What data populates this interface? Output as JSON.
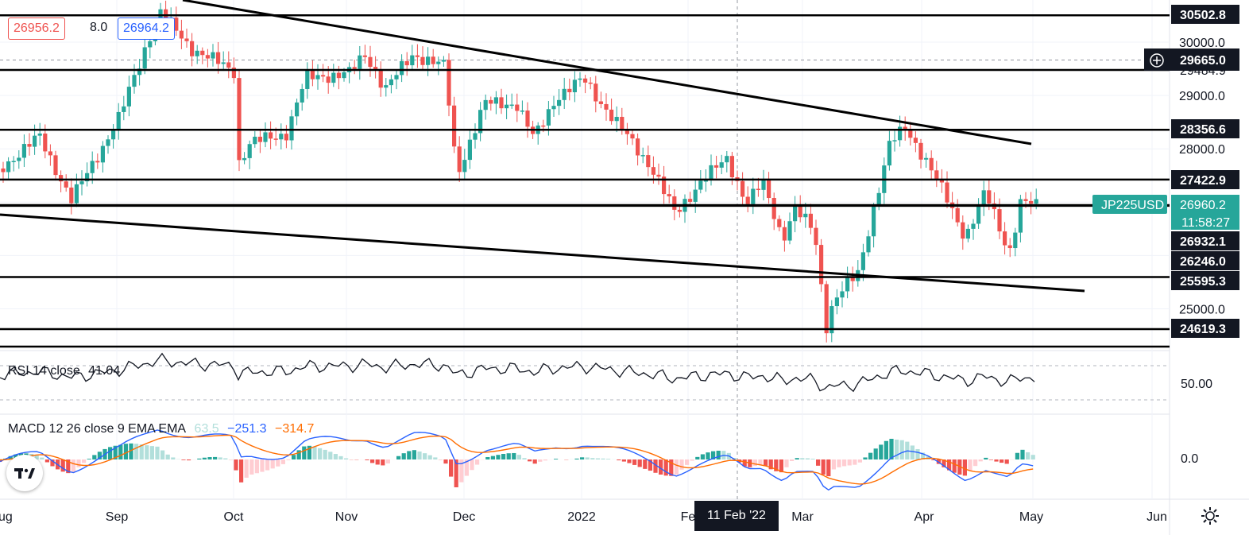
{
  "header": {
    "bid_price": "26956.2",
    "spread": "8.0",
    "ask_price": "26964.2"
  },
  "price_axis": {
    "ticks": [
      "30000.0",
      "29000.0",
      "28000.0",
      "25000.0"
    ],
    "levels": [
      {
        "label": "30502.8",
        "value": 30502.8
      },
      {
        "label": "28356.6",
        "value": 28356.6
      },
      {
        "label": "27422.9",
        "value": 27422.9
      },
      {
        "label": "26932.1",
        "value": 26932.1
      },
      {
        "label": "26246.0",
        "value": 26246.0
      },
      {
        "label": "25595.3",
        "value": 25595.3
      },
      {
        "label": "24619.3",
        "value": 24619.3
      }
    ],
    "crosshair_price": "29665.0",
    "partial_label": "29484.9",
    "symbol_label": "JP225USD",
    "last_price": "26960.2",
    "countdown": "11:58:27"
  },
  "time_axis": {
    "labels": [
      "ug",
      "Sep",
      "Oct",
      "Nov",
      "Dec",
      "2022",
      "Fe",
      "Mar",
      "Apr",
      "May",
      "Jun"
    ],
    "crosshair_date": "11 Feb '22"
  },
  "rsi": {
    "label": "RSI 14 close",
    "value": "41.04",
    "axis_tick": "50.00"
  },
  "macd": {
    "label": "MACD 12 26 close 9 EMA EMA",
    "hist_value": "63.5",
    "macd_value": "−251.3",
    "signal_value": "−314.7",
    "axis_tick": "0.0"
  },
  "colors": {
    "up": "#26a69a",
    "down": "#ef5350",
    "macd_line": "#2962ff",
    "signal_line": "#ff6d00",
    "badge": "#26a69a",
    "label_bg": "#131722"
  },
  "icons": [
    "crosshair-plus-icon",
    "tradingview-logo-icon",
    "gear-icon"
  ]
}
